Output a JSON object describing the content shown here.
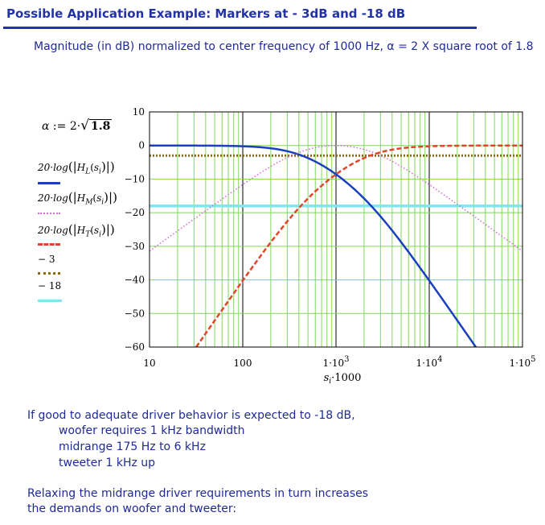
{
  "header": {
    "title": "Possible Application Example: Markers at - 3dB and -18 dB",
    "subtitle": "Magnitude (in dB) normalized to center frequency of 1000 Hz, α = 2 X square root of 1.8"
  },
  "definition": {
    "lhs": "α",
    "op": ":=",
    "expr": "2·",
    "radicand": "1.8"
  },
  "legend": [
    {
      "prefix": "20·log",
      "func": "H",
      "sub": "L",
      "arg": "s",
      "argsub": "i",
      "color": "#1a3fbf",
      "style": "solid"
    },
    {
      "prefix": "20·log",
      "func": "H",
      "sub": "M",
      "arg": "s",
      "argsub": "i",
      "color": "#d36ad8",
      "style": "dotted"
    },
    {
      "prefix": "20·log",
      "func": "H",
      "sub": "T",
      "arg": "s",
      "argsub": "i",
      "color": "#e0452a",
      "style": "dashed"
    },
    {
      "label": "− 3",
      "color": "#8a6a14",
      "style": "dotted-thick"
    },
    {
      "label": "− 18",
      "color": "#7de6ef",
      "style": "solid-thick"
    }
  ],
  "chart_data": {
    "type": "line",
    "x_scale": "log",
    "xlim": [
      10,
      100000
    ],
    "ylim": [
      -60,
      10
    ],
    "x_ticks": [
      10,
      100,
      1000,
      10000,
      100000
    ],
    "x_tick_labels": [
      {
        "main": "10",
        "exp": ""
      },
      {
        "main": "100",
        "exp": ""
      },
      {
        "main": "1·10",
        "exp": "3"
      },
      {
        "main": "1·10",
        "exp": "4"
      },
      {
        "main": "1·10",
        "exp": "5"
      }
    ],
    "y_ticks": [
      10,
      0,
      -10,
      -20,
      -30,
      -40,
      -50,
      -60
    ],
    "y_tick_labels": [
      "10",
      "0",
      "−10",
      "−20",
      "−30",
      "−40",
      "−50",
      "−60"
    ],
    "xlabel": "s",
    "xlabel_sub": "i",
    "xlabel_suffix": "·1000",
    "grid": true,
    "alpha": 2.683,
    "series": [
      {
        "name": "20·log(|H_L(s_i)|)",
        "kind": "lowpass",
        "color": "#1a3fbf",
        "style": "solid"
      },
      {
        "name": "20·log(|H_M(s_i)|)",
        "kind": "bandpass",
        "color": "#d36ad8",
        "style": "dotted"
      },
      {
        "name": "20·log(|H_T(s_i)|)",
        "kind": "highpass",
        "color": "#e0452a",
        "style": "dashed"
      },
      {
        "name": "−3",
        "kind": "const",
        "value": -3,
        "color": "#8a6a14",
        "style": "dotted-thick"
      },
      {
        "name": "−18",
        "kind": "const",
        "value": -18,
        "color": "#7de6ef",
        "style": "solid-thick"
      }
    ]
  },
  "notes": {
    "p1_line1": "If good to adequate driver behavior is expected to -18 dB,",
    "p1_line2": "woofer requires 1 kHz bandwidth",
    "p1_line3": "midrange 175 Hz to 6 kHz",
    "p1_line4": "tweeter 1 kHz up",
    "p2_line1": "Relaxing the midrange driver requirements in turn increases",
    "p2_line2": "the demands on woofer and tweeter:"
  }
}
